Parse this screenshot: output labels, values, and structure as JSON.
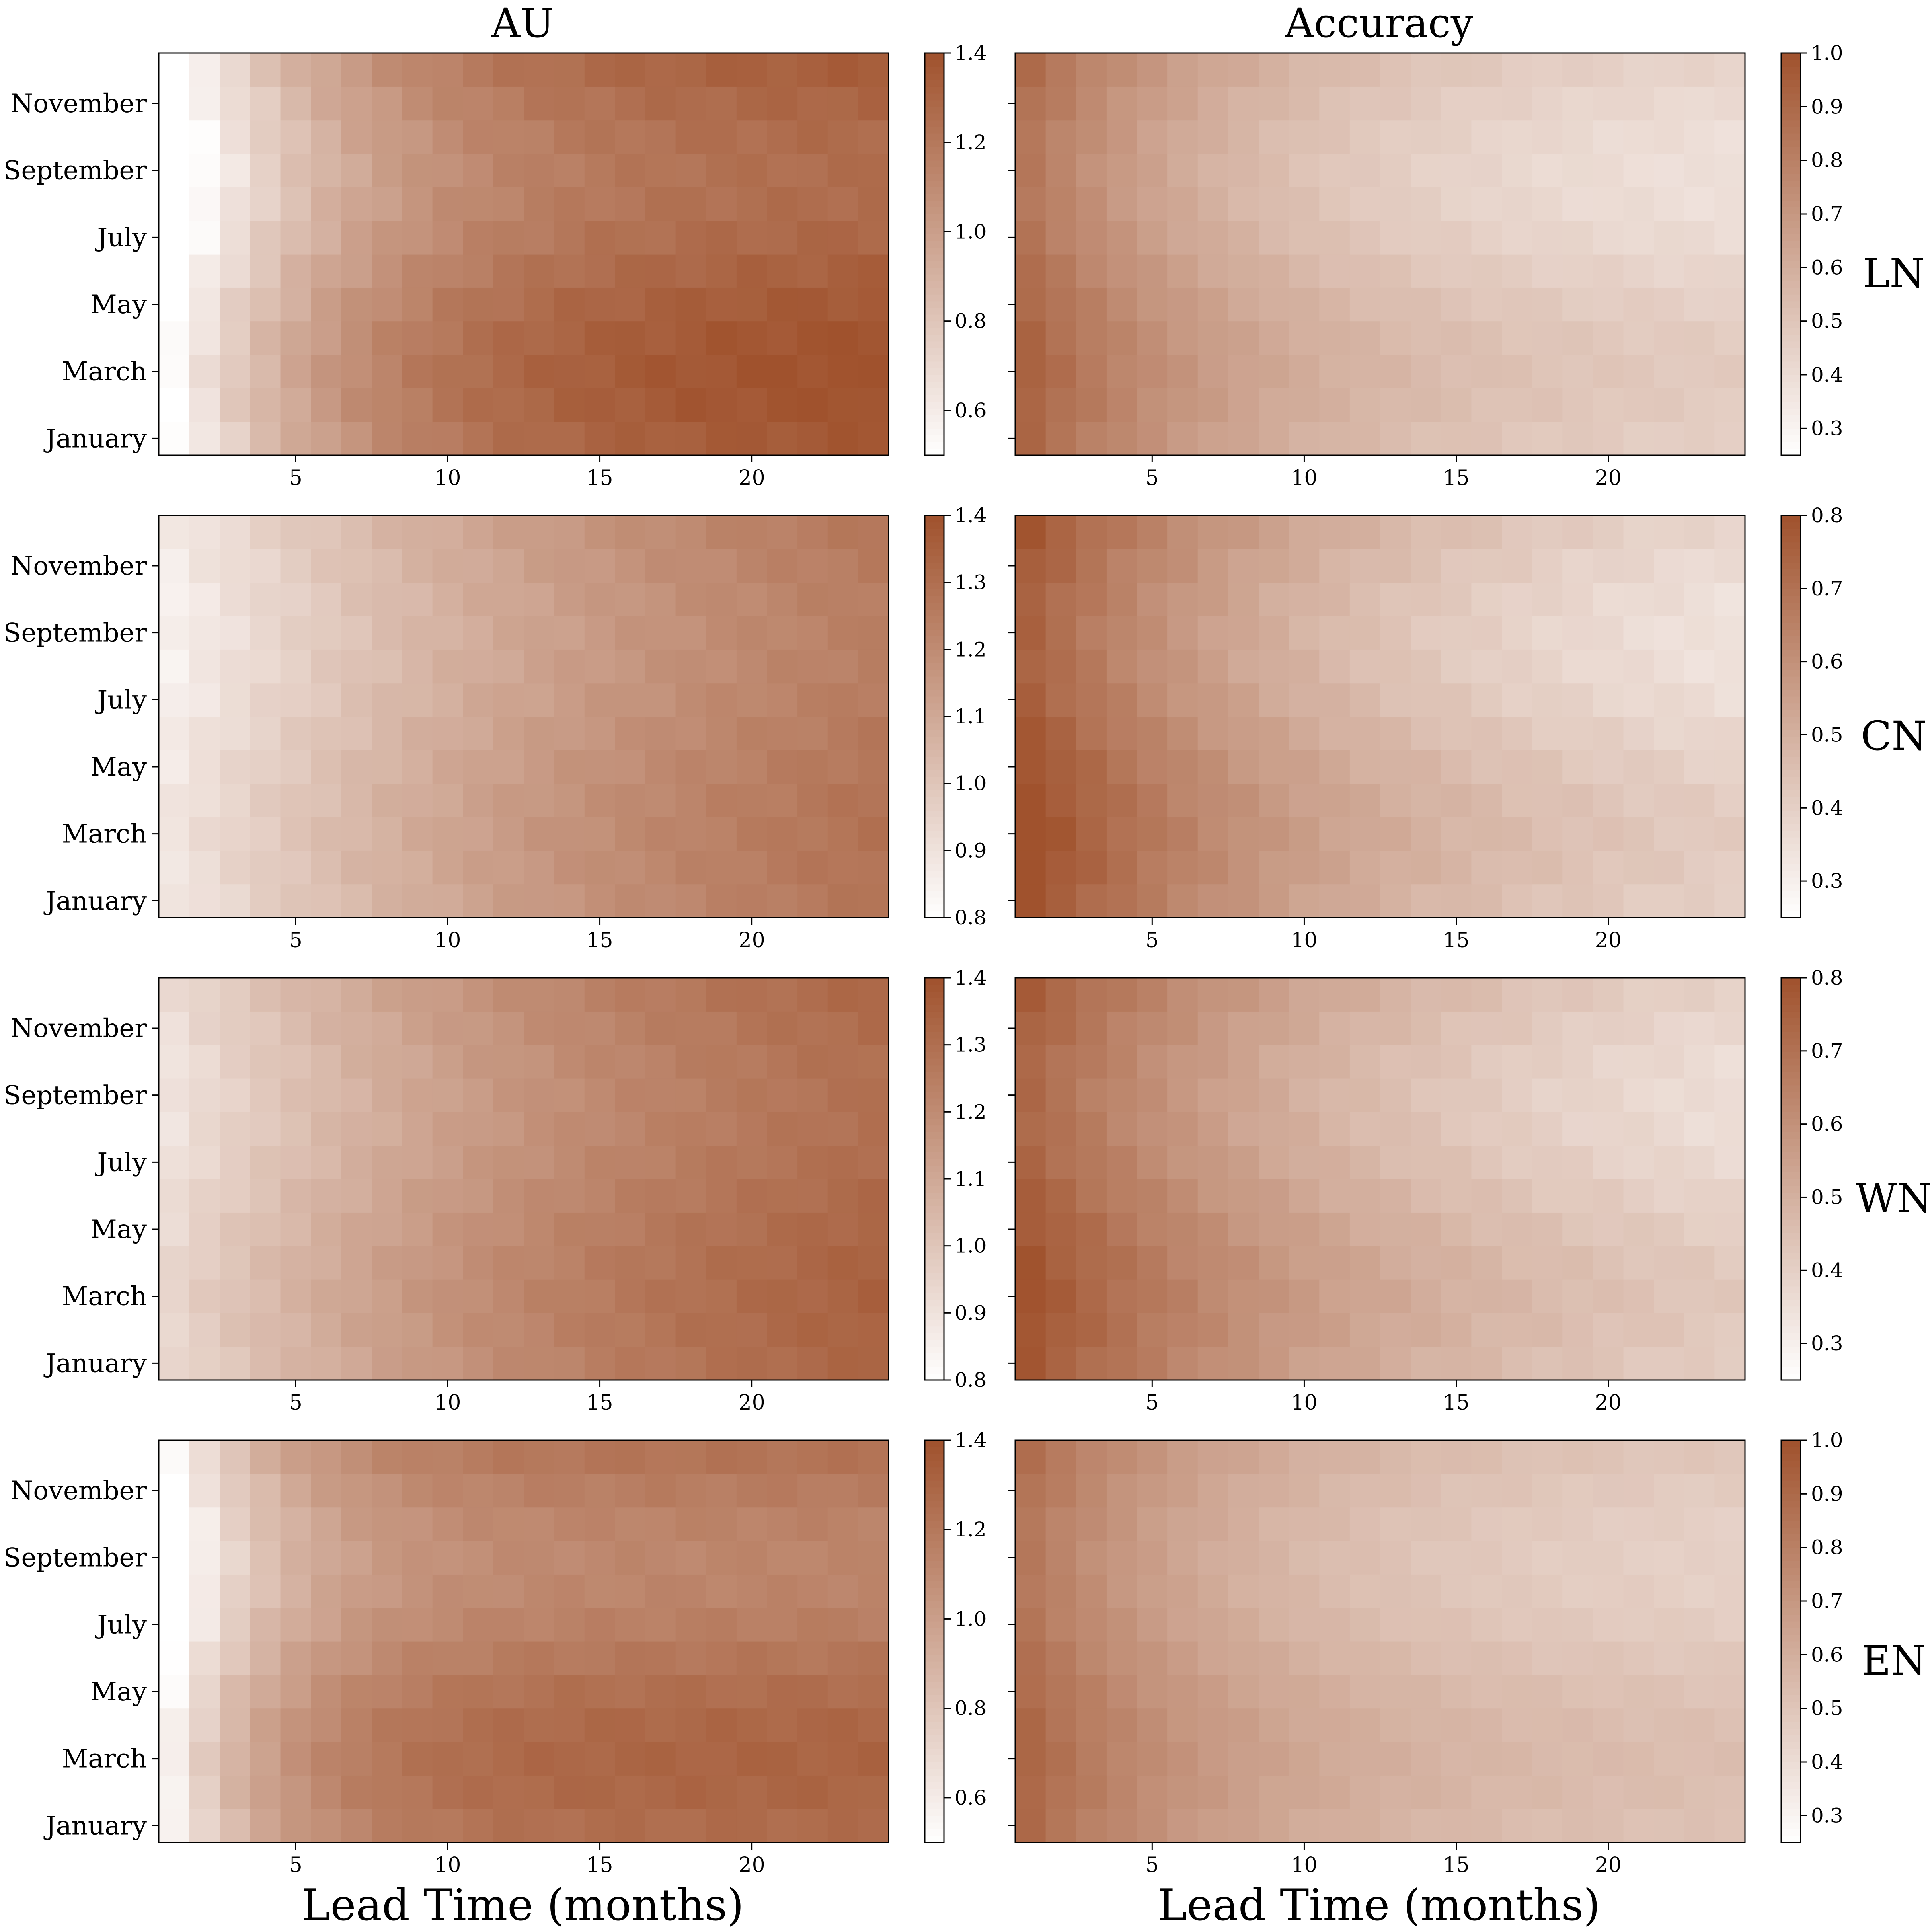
{
  "figure": {
    "column_titles": [
      "AU",
      "Accuracy"
    ],
    "row_labels": [
      "LN",
      "CN",
      "WN",
      "EN"
    ],
    "x_axis_title": "Lead Time (months)"
  },
  "colors": {
    "low": "#ffffff",
    "high": "#a0522d",
    "frame": "#000000"
  },
  "chart_data": [
    {
      "type": "heatmap",
      "row": "LN",
      "metric": "AU",
      "xlabel": "Lead Time (months)",
      "x_ticks": [
        5,
        10,
        15,
        20
      ],
      "x_range": [
        1,
        24
      ],
      "y_ticks": [
        "November",
        "September",
        "July",
        "May",
        "March",
        "January"
      ],
      "colorbar": {
        "range": [
          0.5,
          1.4
        ],
        "ticks": [
          0.6,
          0.8,
          1.0,
          1.2,
          1.4
        ],
        "tick_labels": [
          "0.6",
          "0.8",
          "1.0",
          "1.2",
          "1.4"
        ]
      },
      "model": {
        "start": 0.45,
        "end": 1.35,
        "rate": 0.17,
        "amp": 0.08
      }
    },
    {
      "type": "heatmap",
      "row": "LN",
      "metric": "Accuracy",
      "xlabel": "Lead Time (months)",
      "x_ticks": [
        5,
        10,
        15,
        20
      ],
      "x_range": [
        1,
        24
      ],
      "y_ticks": [
        "November",
        "September",
        "July",
        "May",
        "March",
        "January"
      ],
      "colorbar": {
        "range": [
          0.25,
          1.0
        ],
        "ticks": [
          0.3,
          0.4,
          0.5,
          0.6,
          0.7,
          0.8,
          0.9,
          1.0
        ],
        "tick_labels": [
          "0.3",
          "0.4",
          "0.5",
          "0.6",
          "0.7",
          "0.8",
          "0.9",
          "1.0"
        ]
      },
      "model": {
        "start": 0.88,
        "end": 0.4,
        "rate": 0.12,
        "amp": 0.1
      }
    },
    {
      "type": "heatmap",
      "row": "CN",
      "metric": "AU",
      "xlabel": "Lead Time (months)",
      "x_ticks": [
        5,
        10,
        15,
        20
      ],
      "x_range": [
        1,
        24
      ],
      "y_ticks": [
        "November",
        "September",
        "July",
        "May",
        "March",
        "January"
      ],
      "colorbar": {
        "range": [
          0.8,
          1.4
        ],
        "ticks": [
          0.8,
          0.9,
          1.0,
          1.1,
          1.2,
          1.3,
          1.4
        ],
        "tick_labels": [
          "0.8",
          "0.9",
          "1.0",
          "1.1",
          "1.2",
          "1.3",
          "1.4"
        ]
      },
      "model": {
        "start": 0.87,
        "end": 1.4,
        "rate": 0.06,
        "amp": 0.04
      }
    },
    {
      "type": "heatmap",
      "row": "CN",
      "metric": "Accuracy",
      "xlabel": "Lead Time (months)",
      "x_ticks": [
        5,
        10,
        15,
        20
      ],
      "x_range": [
        1,
        24
      ],
      "y_ticks": [
        "November",
        "September",
        "July",
        "May",
        "March",
        "January"
      ],
      "colorbar": {
        "range": [
          0.25,
          0.8
        ],
        "ticks": [
          0.3,
          0.4,
          0.5,
          0.6,
          0.7,
          0.8
        ],
        "tick_labels": [
          "0.3",
          "0.4",
          "0.5",
          "0.6",
          "0.7",
          "0.8"
        ]
      },
      "model": {
        "start": 0.78,
        "end": 0.32,
        "rate": 0.09,
        "amp": 0.08
      }
    },
    {
      "type": "heatmap",
      "row": "WN",
      "metric": "AU",
      "xlabel": "Lead Time (months)",
      "x_ticks": [
        5,
        10,
        15,
        20
      ],
      "x_range": [
        1,
        24
      ],
      "y_ticks": [
        "November",
        "September",
        "July",
        "May",
        "March",
        "January"
      ],
      "colorbar": {
        "range": [
          0.8,
          1.4
        ],
        "ticks": [
          0.8,
          0.9,
          1.0,
          1.1,
          1.2,
          1.3,
          1.4
        ],
        "tick_labels": [
          "0.8",
          "0.9",
          "1.0",
          "1.1",
          "1.2",
          "1.3",
          "1.4"
        ]
      },
      "model": {
        "start": 0.92,
        "end": 1.42,
        "rate": 0.07,
        "amp": 0.05
      }
    },
    {
      "type": "heatmap",
      "row": "WN",
      "metric": "Accuracy",
      "xlabel": "Lead Time (months)",
      "x_ticks": [
        5,
        10,
        15,
        20
      ],
      "x_range": [
        1,
        24
      ],
      "y_ticks": [
        "November",
        "September",
        "July",
        "May",
        "March",
        "January"
      ],
      "colorbar": {
        "range": [
          0.25,
          0.8
        ],
        "ticks": [
          0.3,
          0.4,
          0.5,
          0.6,
          0.7,
          0.8
        ],
        "tick_labels": [
          "0.3",
          "0.4",
          "0.5",
          "0.6",
          "0.7",
          "0.8"
        ]
      },
      "model": {
        "start": 0.76,
        "end": 0.32,
        "rate": 0.08,
        "amp": 0.08
      }
    },
    {
      "type": "heatmap",
      "row": "EN",
      "metric": "AU",
      "xlabel": "Lead Time (months)",
      "x_ticks": [
        5,
        10,
        15,
        20
      ],
      "x_range": [
        1,
        24
      ],
      "y_ticks": [
        "November",
        "September",
        "July",
        "May",
        "March",
        "January"
      ],
      "colorbar": {
        "range": [
          0.5,
          1.4
        ],
        "ticks": [
          0.6,
          0.8,
          1.0,
          1.2,
          1.4
        ],
        "tick_labels": [
          "0.6",
          "0.8",
          "1.0",
          "1.2",
          "1.4"
        ]
      },
      "model": {
        "start": 0.5,
        "end": 1.22,
        "rate": 0.28,
        "amp": 0.12
      }
    },
    {
      "type": "heatmap",
      "row": "EN",
      "metric": "Accuracy",
      "xlabel": "Lead Time (months)",
      "x_ticks": [
        5,
        10,
        15,
        20
      ],
      "x_range": [
        1,
        24
      ],
      "y_ticks": [
        "November",
        "September",
        "July",
        "May",
        "March",
        "January"
      ],
      "colorbar": {
        "range": [
          0.25,
          1.0
        ],
        "ticks": [
          0.3,
          0.4,
          0.5,
          0.6,
          0.7,
          0.8,
          0.9,
          1.0
        ],
        "tick_labels": [
          "0.3",
          "0.4",
          "0.5",
          "0.6",
          "0.7",
          "0.8",
          "0.9",
          "1.0"
        ]
      },
      "model": {
        "start": 0.87,
        "end": 0.47,
        "rate": 0.13,
        "amp": 0.1
      }
    }
  ]
}
